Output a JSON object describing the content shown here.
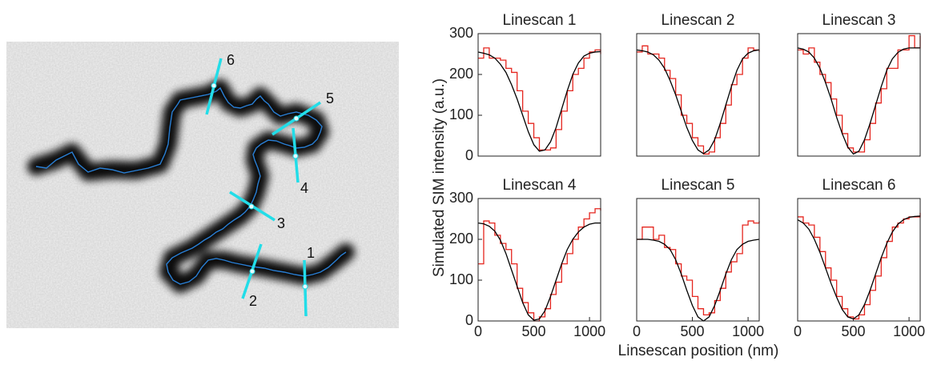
{
  "image": {
    "labels": [
      "1",
      "2",
      "3",
      "4",
      "5",
      "6"
    ]
  },
  "shared_ylabel": "Simulated SIM intensity (a.u.)",
  "shared_xlabel": "Linsescan position (nm)",
  "chart_data": [
    {
      "type": "line",
      "title": "Linescan 1",
      "xlim": [
        0,
        1100
      ],
      "ylim": [
        0,
        300
      ],
      "yticks": [
        0,
        100,
        200,
        300
      ],
      "x": [
        0,
        50,
        100,
        150,
        200,
        250,
        300,
        350,
        400,
        450,
        500,
        550,
        600,
        650,
        700,
        750,
        800,
        850,
        900,
        950,
        1000,
        1050,
        1100
      ],
      "series": [
        {
          "color": "#e5261f",
          "step": true,
          "values": [
            240,
            265,
            240,
            240,
            235,
            215,
            205,
            160,
            110,
            80,
            45,
            15,
            15,
            20,
            65,
            110,
            160,
            200,
            215,
            240,
            255,
            260,
            250
          ]
        },
        {
          "color": "#000000",
          "step": false,
          "values": [
            255,
            252,
            248,
            240,
            225,
            205,
            175,
            140,
            100,
            60,
            28,
            12,
            15,
            35,
            70,
            115,
            160,
            200,
            228,
            245,
            252,
            255,
            256
          ]
        }
      ]
    },
    {
      "type": "line",
      "title": "Linescan 2",
      "xlim": [
        0,
        1100
      ],
      "ylim": [
        0,
        300
      ],
      "x": [
        0,
        50,
        100,
        150,
        200,
        250,
        300,
        350,
        400,
        450,
        500,
        550,
        600,
        650,
        700,
        750,
        800,
        850,
        900,
        950,
        1000,
        1050,
        1100
      ],
      "series": [
        {
          "color": "#e5261f",
          "step": true,
          "values": [
            255,
            270,
            250,
            250,
            240,
            210,
            190,
            150,
            100,
            80,
            45,
            25,
            5,
            10,
            45,
            80,
            125,
            175,
            200,
            240,
            265,
            260,
            255
          ]
        },
        {
          "color": "#000000",
          "step": false,
          "values": [
            260,
            258,
            255,
            248,
            235,
            215,
            185,
            150,
            110,
            70,
            38,
            15,
            6,
            15,
            40,
            80,
            125,
            170,
            210,
            238,
            252,
            258,
            260
          ]
        }
      ]
    },
    {
      "type": "line",
      "title": "Linescan 3",
      "xlim": [
        0,
        1100
      ],
      "ylim": [
        0,
        300
      ],
      "x": [
        0,
        50,
        100,
        150,
        200,
        250,
        300,
        350,
        400,
        450,
        500,
        550,
        600,
        650,
        700,
        750,
        800,
        850,
        900,
        950,
        1000,
        1050,
        1100
      ],
      "series": [
        {
          "color": "#e5261f",
          "step": true,
          "values": [
            260,
            250,
            265,
            230,
            200,
            180,
            140,
            100,
            55,
            20,
            10,
            10,
            40,
            80,
            130,
            165,
            215,
            215,
            260,
            260,
            295,
            265,
            295
          ]
        },
        {
          "color": "#000000",
          "step": false,
          "values": [
            265,
            262,
            255,
            240,
            215,
            180,
            140,
            95,
            55,
            22,
            5,
            12,
            40,
            80,
            125,
            170,
            210,
            238,
            254,
            262,
            265,
            265,
            265
          ]
        }
      ]
    },
    {
      "type": "line",
      "title": "Linescan 4",
      "xlim": [
        0,
        1100
      ],
      "ylim": [
        0,
        300
      ],
      "yticks": [
        0,
        100,
        200,
        300
      ],
      "xticks": [
        0,
        500,
        1000
      ],
      "x": [
        0,
        50,
        100,
        150,
        200,
        250,
        300,
        350,
        400,
        450,
        500,
        550,
        600,
        650,
        700,
        750,
        800,
        850,
        900,
        950,
        1000,
        1050,
        1100
      ],
      "series": [
        {
          "color": "#e5261f",
          "step": true,
          "values": [
            140,
            245,
            240,
            210,
            190,
            175,
            140,
            80,
            45,
            20,
            0,
            10,
            30,
            65,
            95,
            140,
            165,
            200,
            230,
            250,
            265,
            275,
            270
          ]
        },
        {
          "color": "#000000",
          "step": false,
          "values": [
            240,
            238,
            232,
            220,
            198,
            165,
            125,
            85,
            45,
            15,
            2,
            5,
            25,
            60,
            100,
            140,
            175,
            200,
            218,
            230,
            237,
            240,
            240
          ]
        }
      ]
    },
    {
      "type": "line",
      "title": "Linescan 5",
      "xlim": [
        0,
        1100
      ],
      "ylim": [
        0,
        300
      ],
      "xticks": [
        0,
        500,
        1000
      ],
      "x": [
        0,
        50,
        100,
        150,
        200,
        250,
        300,
        350,
        400,
        450,
        500,
        550,
        600,
        650,
        700,
        750,
        800,
        850,
        900,
        950,
        1000,
        1050,
        1100
      ],
      "series": [
        {
          "color": "#e5261f",
          "step": true,
          "values": [
            200,
            230,
            230,
            200,
            210,
            180,
            175,
            140,
            110,
            100,
            60,
            30,
            15,
            20,
            50,
            80,
            120,
            145,
            165,
            235,
            245,
            240,
            245
          ]
        },
        {
          "color": "#000000",
          "step": false,
          "values": [
            200,
            200,
            200,
            198,
            195,
            188,
            175,
            150,
            115,
            75,
            38,
            10,
            0,
            10,
            38,
            75,
            115,
            150,
            175,
            188,
            195,
            198,
            200
          ]
        }
      ]
    },
    {
      "type": "line",
      "title": "Linescan 6",
      "xlim": [
        0,
        1100
      ],
      "ylim": [
        0,
        300
      ],
      "xticks": [
        0,
        500,
        1000
      ],
      "x": [
        0,
        50,
        100,
        150,
        200,
        250,
        300,
        350,
        400,
        450,
        500,
        550,
        600,
        650,
        700,
        750,
        800,
        850,
        900,
        950,
        1000,
        1050,
        1100
      ],
      "series": [
        {
          "color": "#e5261f",
          "step": true,
          "values": [
            255,
            240,
            235,
            205,
            170,
            130,
            100,
            60,
            30,
            10,
            5,
            15,
            40,
            75,
            110,
            155,
            195,
            230,
            240,
            250,
            255,
            255,
            265
          ]
        },
        {
          "color": "#000000",
          "step": false,
          "values": [
            248,
            240,
            225,
            200,
            168,
            130,
            92,
            58,
            28,
            10,
            5,
            15,
            40,
            75,
            115,
            155,
            190,
            218,
            237,
            248,
            254,
            256,
            257
          ]
        }
      ]
    }
  ]
}
